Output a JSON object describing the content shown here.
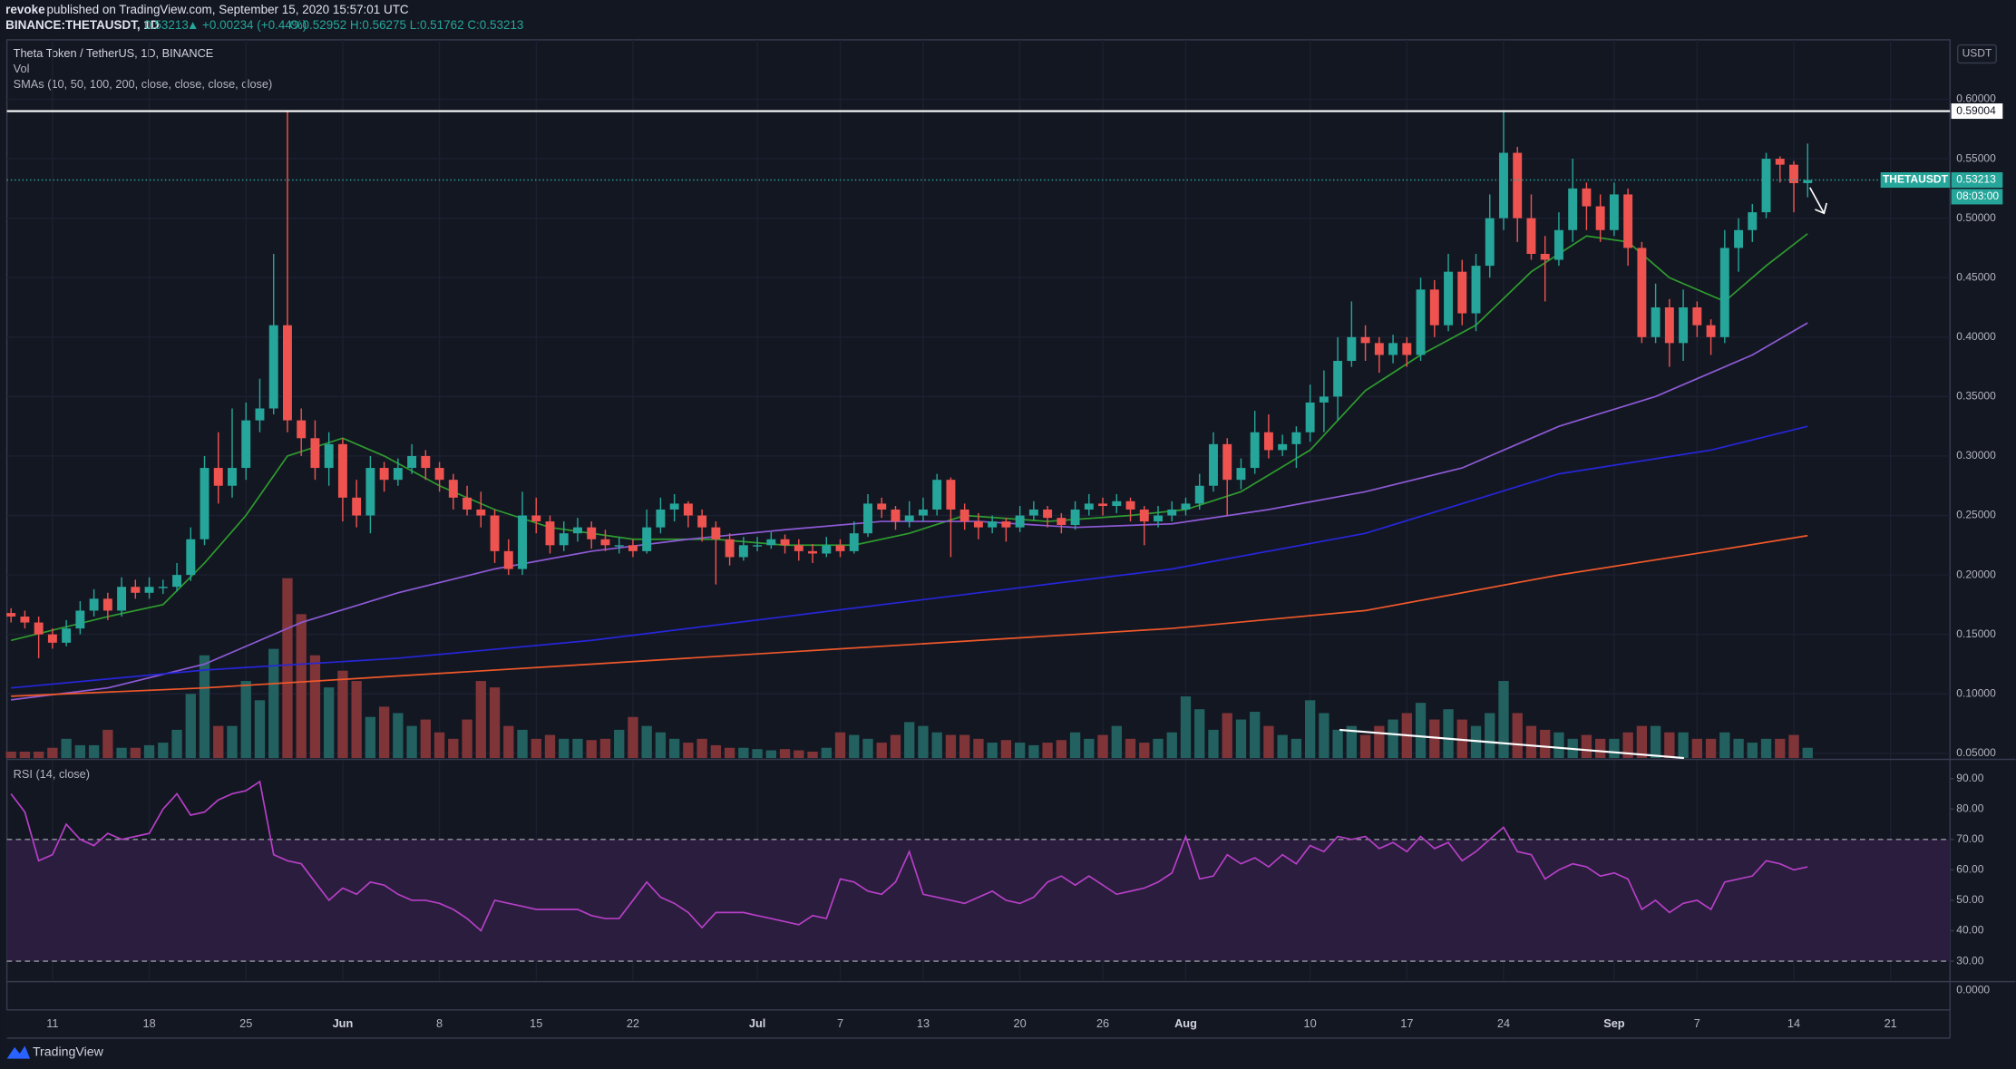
{
  "header": {
    "author": "revoke",
    "published": "published on TradingView.com, September 15, 2020 15:57:01 UTC",
    "symbol": "BINANCE:THETAUSDT, 1D",
    "last": "0.53213",
    "change": "▲ +0.00234 (+0.44%)",
    "ohlc": "O:0.52952 H:0.56275 L:0.51762 C:0.53213"
  },
  "chart_data": {
    "type": "candlestick",
    "title": "Theta Token / TetherUS, 1D, BINANCE",
    "volume_label": "Vol",
    "sma_label": "SMAs (10, 50, 100, 200, close, close, close, close)",
    "currency": "USDT",
    "up_color": "#26a69a",
    "down_color": "#ef5350",
    "volume_up_color": "#22615f",
    "volume_down_color": "#7f3438",
    "grid": true,
    "xlim": [
      -0.3,
      140.3
    ],
    "ylim": [
      0.046,
      0.65
    ],
    "yticks": [
      {
        "value": 0.6,
        "label": "0.60000"
      },
      {
        "value": 0.55,
        "label": "0.55000"
      },
      {
        "value": 0.5,
        "label": "0.50000"
      },
      {
        "value": 0.45,
        "label": "0.45000"
      },
      {
        "value": 0.4,
        "label": "0.40000"
      },
      {
        "value": 0.35,
        "label": "0.35000"
      },
      {
        "value": 0.3,
        "label": "0.30000"
      },
      {
        "value": 0.25,
        "label": "0.25000"
      },
      {
        "value": 0.2,
        "label": "0.20000"
      },
      {
        "value": 0.15,
        "label": "0.15000"
      },
      {
        "value": 0.1,
        "label": "0.10000"
      },
      {
        "value": 0.05,
        "label": "0.05000"
      }
    ],
    "xticks": [
      {
        "value": 3,
        "label": "11"
      },
      {
        "value": 10,
        "label": "18"
      },
      {
        "value": 17,
        "label": "25"
      },
      {
        "value": 24,
        "label": "Jun"
      },
      {
        "value": 31,
        "label": "8"
      },
      {
        "value": 38,
        "label": "15"
      },
      {
        "value": 45,
        "label": "22"
      },
      {
        "value": 54,
        "label": "Jul"
      },
      {
        "value": 60,
        "label": "7"
      },
      {
        "value": 66,
        "label": "13"
      },
      {
        "value": 73,
        "label": "20"
      },
      {
        "value": 79,
        "label": "26"
      },
      {
        "value": 85,
        "label": "Aug"
      },
      {
        "value": 94,
        "label": "10"
      },
      {
        "value": 101,
        "label": "17"
      },
      {
        "value": 108,
        "label": "24"
      },
      {
        "value": 116,
        "label": "Sep"
      },
      {
        "value": 122,
        "label": "7"
      },
      {
        "value": 129,
        "label": "14"
      },
      {
        "value": 136,
        "label": "21"
      }
    ],
    "hline": 0.59004,
    "hline_color": "#ffffff",
    "last_price": {
      "name": "THETAUSDT",
      "value": 0.53213,
      "countdown": "08:03:00"
    },
    "candles": [
      [
        0.168,
        0.172,
        0.16,
        0.165
      ],
      [
        0.165,
        0.17,
        0.155,
        0.16
      ],
      [
        0.16,
        0.165,
        0.13,
        0.15
      ],
      [
        0.15,
        0.155,
        0.138,
        0.143
      ],
      [
        0.143,
        0.162,
        0.14,
        0.155
      ],
      [
        0.155,
        0.178,
        0.15,
        0.17
      ],
      [
        0.17,
        0.188,
        0.165,
        0.18
      ],
      [
        0.18,
        0.185,
        0.162,
        0.17
      ],
      [
        0.17,
        0.198,
        0.165,
        0.19
      ],
      [
        0.19,
        0.196,
        0.18,
        0.185
      ],
      [
        0.185,
        0.198,
        0.18,
        0.19
      ],
      [
        0.19,
        0.196,
        0.184,
        0.19
      ],
      [
        0.19,
        0.21,
        0.186,
        0.2
      ],
      [
        0.2,
        0.24,
        0.195,
        0.23
      ],
      [
        0.23,
        0.3,
        0.225,
        0.29
      ],
      [
        0.29,
        0.32,
        0.26,
        0.275
      ],
      [
        0.275,
        0.34,
        0.265,
        0.29
      ],
      [
        0.29,
        0.345,
        0.28,
        0.33
      ],
      [
        0.33,
        0.365,
        0.32,
        0.34
      ],
      [
        0.34,
        0.47,
        0.335,
        0.41
      ],
      [
        0.41,
        0.59,
        0.32,
        0.33
      ],
      [
        0.33,
        0.34,
        0.3,
        0.315
      ],
      [
        0.315,
        0.33,
        0.28,
        0.29
      ],
      [
        0.29,
        0.32,
        0.275,
        0.31
      ],
      [
        0.31,
        0.315,
        0.245,
        0.265
      ],
      [
        0.265,
        0.28,
        0.24,
        0.25
      ],
      [
        0.25,
        0.3,
        0.235,
        0.29
      ],
      [
        0.29,
        0.295,
        0.27,
        0.28
      ],
      [
        0.28,
        0.298,
        0.275,
        0.29
      ],
      [
        0.29,
        0.31,
        0.285,
        0.3
      ],
      [
        0.3,
        0.305,
        0.28,
        0.29
      ],
      [
        0.29,
        0.295,
        0.27,
        0.28
      ],
      [
        0.28,
        0.285,
        0.255,
        0.265
      ],
      [
        0.265,
        0.275,
        0.25,
        0.255
      ],
      [
        0.255,
        0.27,
        0.24,
        0.25
      ],
      [
        0.25,
        0.255,
        0.21,
        0.22
      ],
      [
        0.22,
        0.23,
        0.2,
        0.205
      ],
      [
        0.205,
        0.27,
        0.2,
        0.25
      ],
      [
        0.25,
        0.265,
        0.235,
        0.245
      ],
      [
        0.245,
        0.25,
        0.218,
        0.225
      ],
      [
        0.225,
        0.245,
        0.22,
        0.235
      ],
      [
        0.235,
        0.248,
        0.228,
        0.24
      ],
      [
        0.24,
        0.245,
        0.222,
        0.23
      ],
      [
        0.23,
        0.238,
        0.22,
        0.225
      ],
      [
        0.225,
        0.232,
        0.218,
        0.225
      ],
      [
        0.225,
        0.23,
        0.215,
        0.22
      ],
      [
        0.22,
        0.255,
        0.218,
        0.24
      ],
      [
        0.24,
        0.265,
        0.235,
        0.255
      ],
      [
        0.255,
        0.268,
        0.245,
        0.26
      ],
      [
        0.26,
        0.262,
        0.24,
        0.25
      ],
      [
        0.25,
        0.255,
        0.228,
        0.24
      ],
      [
        0.24,
        0.245,
        0.192,
        0.23
      ],
      [
        0.23,
        0.235,
        0.208,
        0.215
      ],
      [
        0.215,
        0.232,
        0.212,
        0.225
      ],
      [
        0.225,
        0.232,
        0.22,
        0.225
      ],
      [
        0.225,
        0.236,
        0.222,
        0.23
      ],
      [
        0.23,
        0.234,
        0.218,
        0.225
      ],
      [
        0.225,
        0.23,
        0.212,
        0.22
      ],
      [
        0.22,
        0.226,
        0.21,
        0.218
      ],
      [
        0.218,
        0.232,
        0.215,
        0.225
      ],
      [
        0.225,
        0.23,
        0.215,
        0.22
      ],
      [
        0.22,
        0.245,
        0.218,
        0.235
      ],
      [
        0.235,
        0.268,
        0.232,
        0.26
      ],
      [
        0.26,
        0.265,
        0.248,
        0.255
      ],
      [
        0.255,
        0.258,
        0.238,
        0.245
      ],
      [
        0.245,
        0.262,
        0.24,
        0.25
      ],
      [
        0.25,
        0.265,
        0.245,
        0.255
      ],
      [
        0.255,
        0.285,
        0.25,
        0.28
      ],
      [
        0.28,
        0.282,
        0.215,
        0.255
      ],
      [
        0.255,
        0.26,
        0.238,
        0.245
      ],
      [
        0.245,
        0.252,
        0.23,
        0.24
      ],
      [
        0.24,
        0.25,
        0.235,
        0.245
      ],
      [
        0.245,
        0.248,
        0.228,
        0.24
      ],
      [
        0.24,
        0.258,
        0.236,
        0.25
      ],
      [
        0.25,
        0.262,
        0.246,
        0.255
      ],
      [
        0.255,
        0.258,
        0.24,
        0.248
      ],
      [
        0.248,
        0.252,
        0.235,
        0.242
      ],
      [
        0.242,
        0.262,
        0.238,
        0.255
      ],
      [
        0.255,
        0.268,
        0.25,
        0.26
      ],
      [
        0.26,
        0.265,
        0.25,
        0.258
      ],
      [
        0.258,
        0.268,
        0.252,
        0.262
      ],
      [
        0.262,
        0.265,
        0.245,
        0.255
      ],
      [
        0.255,
        0.258,
        0.225,
        0.245
      ],
      [
        0.245,
        0.258,
        0.24,
        0.25
      ],
      [
        0.25,
        0.262,
        0.245,
        0.255
      ],
      [
        0.255,
        0.265,
        0.25,
        0.26
      ],
      [
        0.26,
        0.285,
        0.255,
        0.275
      ],
      [
        0.275,
        0.32,
        0.27,
        0.31
      ],
      [
        0.31,
        0.315,
        0.25,
        0.28
      ],
      [
        0.28,
        0.298,
        0.272,
        0.29
      ],
      [
        0.29,
        0.338,
        0.285,
        0.32
      ],
      [
        0.32,
        0.335,
        0.298,
        0.305
      ],
      [
        0.305,
        0.318,
        0.3,
        0.31
      ],
      [
        0.31,
        0.325,
        0.29,
        0.32
      ],
      [
        0.32,
        0.36,
        0.312,
        0.345
      ],
      [
        0.345,
        0.372,
        0.32,
        0.35
      ],
      [
        0.35,
        0.4,
        0.33,
        0.38
      ],
      [
        0.38,
        0.43,
        0.375,
        0.4
      ],
      [
        0.4,
        0.41,
        0.38,
        0.395
      ],
      [
        0.395,
        0.4,
        0.37,
        0.385
      ],
      [
        0.385,
        0.402,
        0.378,
        0.395
      ],
      [
        0.395,
        0.4,
        0.375,
        0.385
      ],
      [
        0.385,
        0.45,
        0.38,
        0.44
      ],
      [
        0.44,
        0.448,
        0.4,
        0.41
      ],
      [
        0.41,
        0.47,
        0.405,
        0.455
      ],
      [
        0.455,
        0.465,
        0.41,
        0.42
      ],
      [
        0.42,
        0.47,
        0.405,
        0.46
      ],
      [
        0.46,
        0.52,
        0.45,
        0.5
      ],
      [
        0.5,
        0.59,
        0.49,
        0.555
      ],
      [
        0.555,
        0.56,
        0.48,
        0.5
      ],
      [
        0.5,
        0.52,
        0.465,
        0.47
      ],
      [
        0.47,
        0.485,
        0.43,
        0.465
      ],
      [
        0.465,
        0.505,
        0.46,
        0.49
      ],
      [
        0.49,
        0.55,
        0.48,
        0.525
      ],
      [
        0.525,
        0.53,
        0.49,
        0.51
      ],
      [
        0.51,
        0.52,
        0.48,
        0.49
      ],
      [
        0.49,
        0.53,
        0.485,
        0.52
      ],
      [
        0.52,
        0.525,
        0.46,
        0.475
      ],
      [
        0.475,
        0.48,
        0.395,
        0.4
      ],
      [
        0.4,
        0.445,
        0.395,
        0.425
      ],
      [
        0.425,
        0.432,
        0.375,
        0.395
      ],
      [
        0.395,
        0.44,
        0.38,
        0.425
      ],
      [
        0.425,
        0.43,
        0.4,
        0.41
      ],
      [
        0.41,
        0.415,
        0.385,
        0.4
      ],
      [
        0.4,
        0.49,
        0.395,
        0.475
      ],
      [
        0.475,
        0.5,
        0.455,
        0.49
      ],
      [
        0.49,
        0.512,
        0.48,
        0.505
      ],
      [
        0.505,
        0.555,
        0.5,
        0.55
      ],
      [
        0.55,
        0.552,
        0.53,
        0.545
      ],
      [
        0.545,
        0.548,
        0.505,
        0.5295
      ],
      [
        0.52952,
        0.56275,
        0.51762,
        0.53213
      ]
    ],
    "volume": [
      5,
      5,
      5,
      8,
      15,
      10,
      10,
      22,
      8,
      8,
      10,
      12,
      22,
      50,
      80,
      25,
      25,
      60,
      45,
      85,
      140,
      112,
      80,
      55,
      68,
      60,
      32,
      40,
      35,
      25,
      30,
      20,
      15,
      30,
      60,
      55,
      25,
      22,
      15,
      18,
      15,
      15,
      14,
      15,
      22,
      32,
      25,
      20,
      15,
      12,
      15,
      10,
      8,
      8,
      7,
      6,
      7,
      6,
      5,
      8,
      20,
      18,
      15,
      12,
      18,
      28,
      25,
      20,
      18,
      18,
      15,
      12,
      14,
      12,
      10,
      12,
      14,
      20,
      15,
      18,
      25,
      15,
      12,
      15,
      20,
      48,
      38,
      22,
      35,
      30,
      36,
      25,
      18,
      15,
      45,
      35,
      22,
      25,
      18,
      25,
      30,
      35,
      43,
      30,
      38,
      30,
      25,
      35,
      60,
      35,
      25,
      22,
      20,
      15,
      18,
      15,
      15,
      20,
      25,
      25,
      20,
      20,
      15,
      15,
      20,
      15,
      12,
      15,
      15,
      18,
      8
    ],
    "sma": [
      {
        "color": "#2e9c2e",
        "x": [
          0,
          7,
          11,
          14,
          17,
          20,
          24,
          27,
          31,
          35,
          39,
          45,
          51,
          56,
          61,
          65,
          69,
          75,
          81,
          85,
          89,
          94,
          98,
          102,
          106,
          110,
          114,
          117,
          120,
          124,
          127,
          130
        ],
        "values": [
          0.145,
          0.165,
          0.175,
          0.21,
          0.25,
          0.3,
          0.315,
          0.3,
          0.275,
          0.255,
          0.24,
          0.23,
          0.23,
          0.225,
          0.225,
          0.235,
          0.25,
          0.245,
          0.25,
          0.255,
          0.27,
          0.305,
          0.355,
          0.385,
          0.41,
          0.455,
          0.485,
          0.48,
          0.45,
          0.43,
          0.46,
          0.487
        ]
      },
      {
        "color": "#8e5ad6",
        "x": [
          0,
          7,
          14,
          21,
          28,
          35,
          42,
          49,
          56,
          63,
          70,
          77,
          84,
          91,
          98,
          105,
          112,
          119,
          126,
          130
        ],
        "values": [
          0.095,
          0.105,
          0.125,
          0.16,
          0.185,
          0.205,
          0.22,
          0.23,
          0.238,
          0.245,
          0.245,
          0.24,
          0.243,
          0.255,
          0.27,
          0.29,
          0.325,
          0.35,
          0.385,
          0.412
        ]
      },
      {
        "color": "#2626d9",
        "x": [
          0,
          14,
          28,
          42,
          56,
          70,
          84,
          98,
          112,
          123,
          130
        ],
        "values": [
          0.105,
          0.12,
          0.13,
          0.145,
          0.165,
          0.185,
          0.205,
          0.235,
          0.285,
          0.305,
          0.325
        ]
      },
      {
        "color": "#f0582a",
        "x": [
          0,
          14,
          28,
          42,
          56,
          70,
          84,
          98,
          112,
          123,
          130
        ],
        "values": [
          0.098,
          0.105,
          0.115,
          0.125,
          0.135,
          0.145,
          0.155,
          0.17,
          0.2,
          0.22,
          0.233
        ]
      }
    ],
    "rsi": {
      "label": "RSI (14, close)",
      "color": "#b63fc6",
      "band_color": "#2a1d3d",
      "ylim": [
        23.7,
        95.9
      ],
      "band": [
        30,
        70
      ],
      "yticks": [
        {
          "value": 90,
          "label": "90.00"
        },
        {
          "value": 80,
          "label": "80.00"
        },
        {
          "value": 70,
          "label": "70.00"
        },
        {
          "value": 60,
          "label": "60.00"
        },
        {
          "value": 50,
          "label": "50.00"
        },
        {
          "value": 40,
          "label": "40.00"
        },
        {
          "value": 30,
          "label": "30.00"
        }
      ],
      "values": [
        85,
        79,
        63,
        65,
        75,
        70,
        68,
        72,
        70,
        71,
        72,
        80,
        85,
        78,
        79,
        83,
        85,
        86,
        89,
        65,
        63,
        62,
        56,
        50,
        54,
        52,
        56,
        55,
        52,
        50,
        50,
        49,
        47,
        44,
        40,
        50,
        49,
        48,
        47,
        47,
        47,
        47,
        45,
        44,
        44,
        50,
        56,
        51,
        49,
        46,
        41,
        46,
        46,
        46,
        45,
        44,
        43,
        42,
        45,
        44,
        57,
        56,
        53,
        52,
        56,
        66,
        52,
        51,
        50,
        49,
        51,
        53,
        50,
        49,
        51,
        56,
        58,
        55,
        58,
        55,
        52,
        53,
        54,
        56,
        59,
        71,
        57,
        58,
        65,
        62,
        64,
        61,
        65,
        62,
        68,
        66,
        71,
        70,
        71,
        67,
        69,
        66,
        71,
        67,
        69,
        63,
        66,
        70,
        74,
        66,
        65,
        57,
        60,
        62,
        61,
        58,
        59,
        57,
        47,
        50,
        46,
        49,
        50,
        47,
        56,
        57,
        58,
        63,
        62,
        60,
        61
      ]
    },
    "bottom_pane_tick": "0.0000"
  },
  "footer": {
    "brand": "TradingView"
  }
}
